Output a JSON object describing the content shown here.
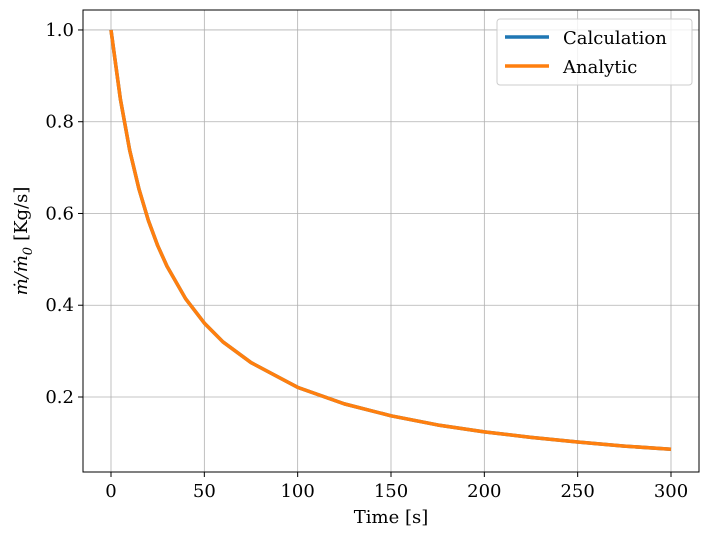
{
  "chart_data": {
    "type": "line",
    "title": "",
    "xlabel": "Time [s]",
    "ylabel_main": "ṁ/ṁ",
    "ylabel_sub": "0",
    "ylabel_unit": "[Kg/s]",
    "xlim": [
      -15,
      315
    ],
    "ylim": [
      0.0365,
      1.0435
    ],
    "x_ticks": [
      0,
      50,
      100,
      150,
      200,
      250,
      300
    ],
    "y_ticks": [
      0.2,
      0.4,
      0.6,
      0.8,
      1.0
    ],
    "x_tick_labels": [
      "0",
      "50",
      "100",
      "150",
      "200",
      "250",
      "300"
    ],
    "y_tick_labels": [
      "0.2",
      "0.4",
      "0.6",
      "0.8",
      "1.0"
    ],
    "grid": true,
    "legend_position": "top-right",
    "series": [
      {
        "name": "Calculation",
        "color": "#1f77b4",
        "x": [
          0,
          5,
          10,
          15,
          20,
          25,
          30,
          40,
          50,
          60,
          75,
          100,
          125,
          150,
          175,
          200,
          225,
          250,
          275,
          300
        ],
        "y": [
          1.0,
          0.85,
          0.738,
          0.653,
          0.585,
          0.53,
          0.485,
          0.414,
          0.361,
          0.32,
          0.275,
          0.221,
          0.185,
          0.159,
          0.139,
          0.124,
          0.112,
          0.102,
          0.093,
          0.086
        ]
      },
      {
        "name": "Analytic",
        "color": "#ff7f0e",
        "x": [
          0,
          5,
          10,
          15,
          20,
          25,
          30,
          40,
          50,
          60,
          75,
          100,
          125,
          150,
          175,
          200,
          225,
          250,
          275,
          300
        ],
        "y": [
          1.0,
          0.85,
          0.738,
          0.653,
          0.585,
          0.53,
          0.485,
          0.414,
          0.361,
          0.32,
          0.275,
          0.221,
          0.185,
          0.159,
          0.139,
          0.124,
          0.112,
          0.102,
          0.093,
          0.086
        ]
      }
    ]
  }
}
